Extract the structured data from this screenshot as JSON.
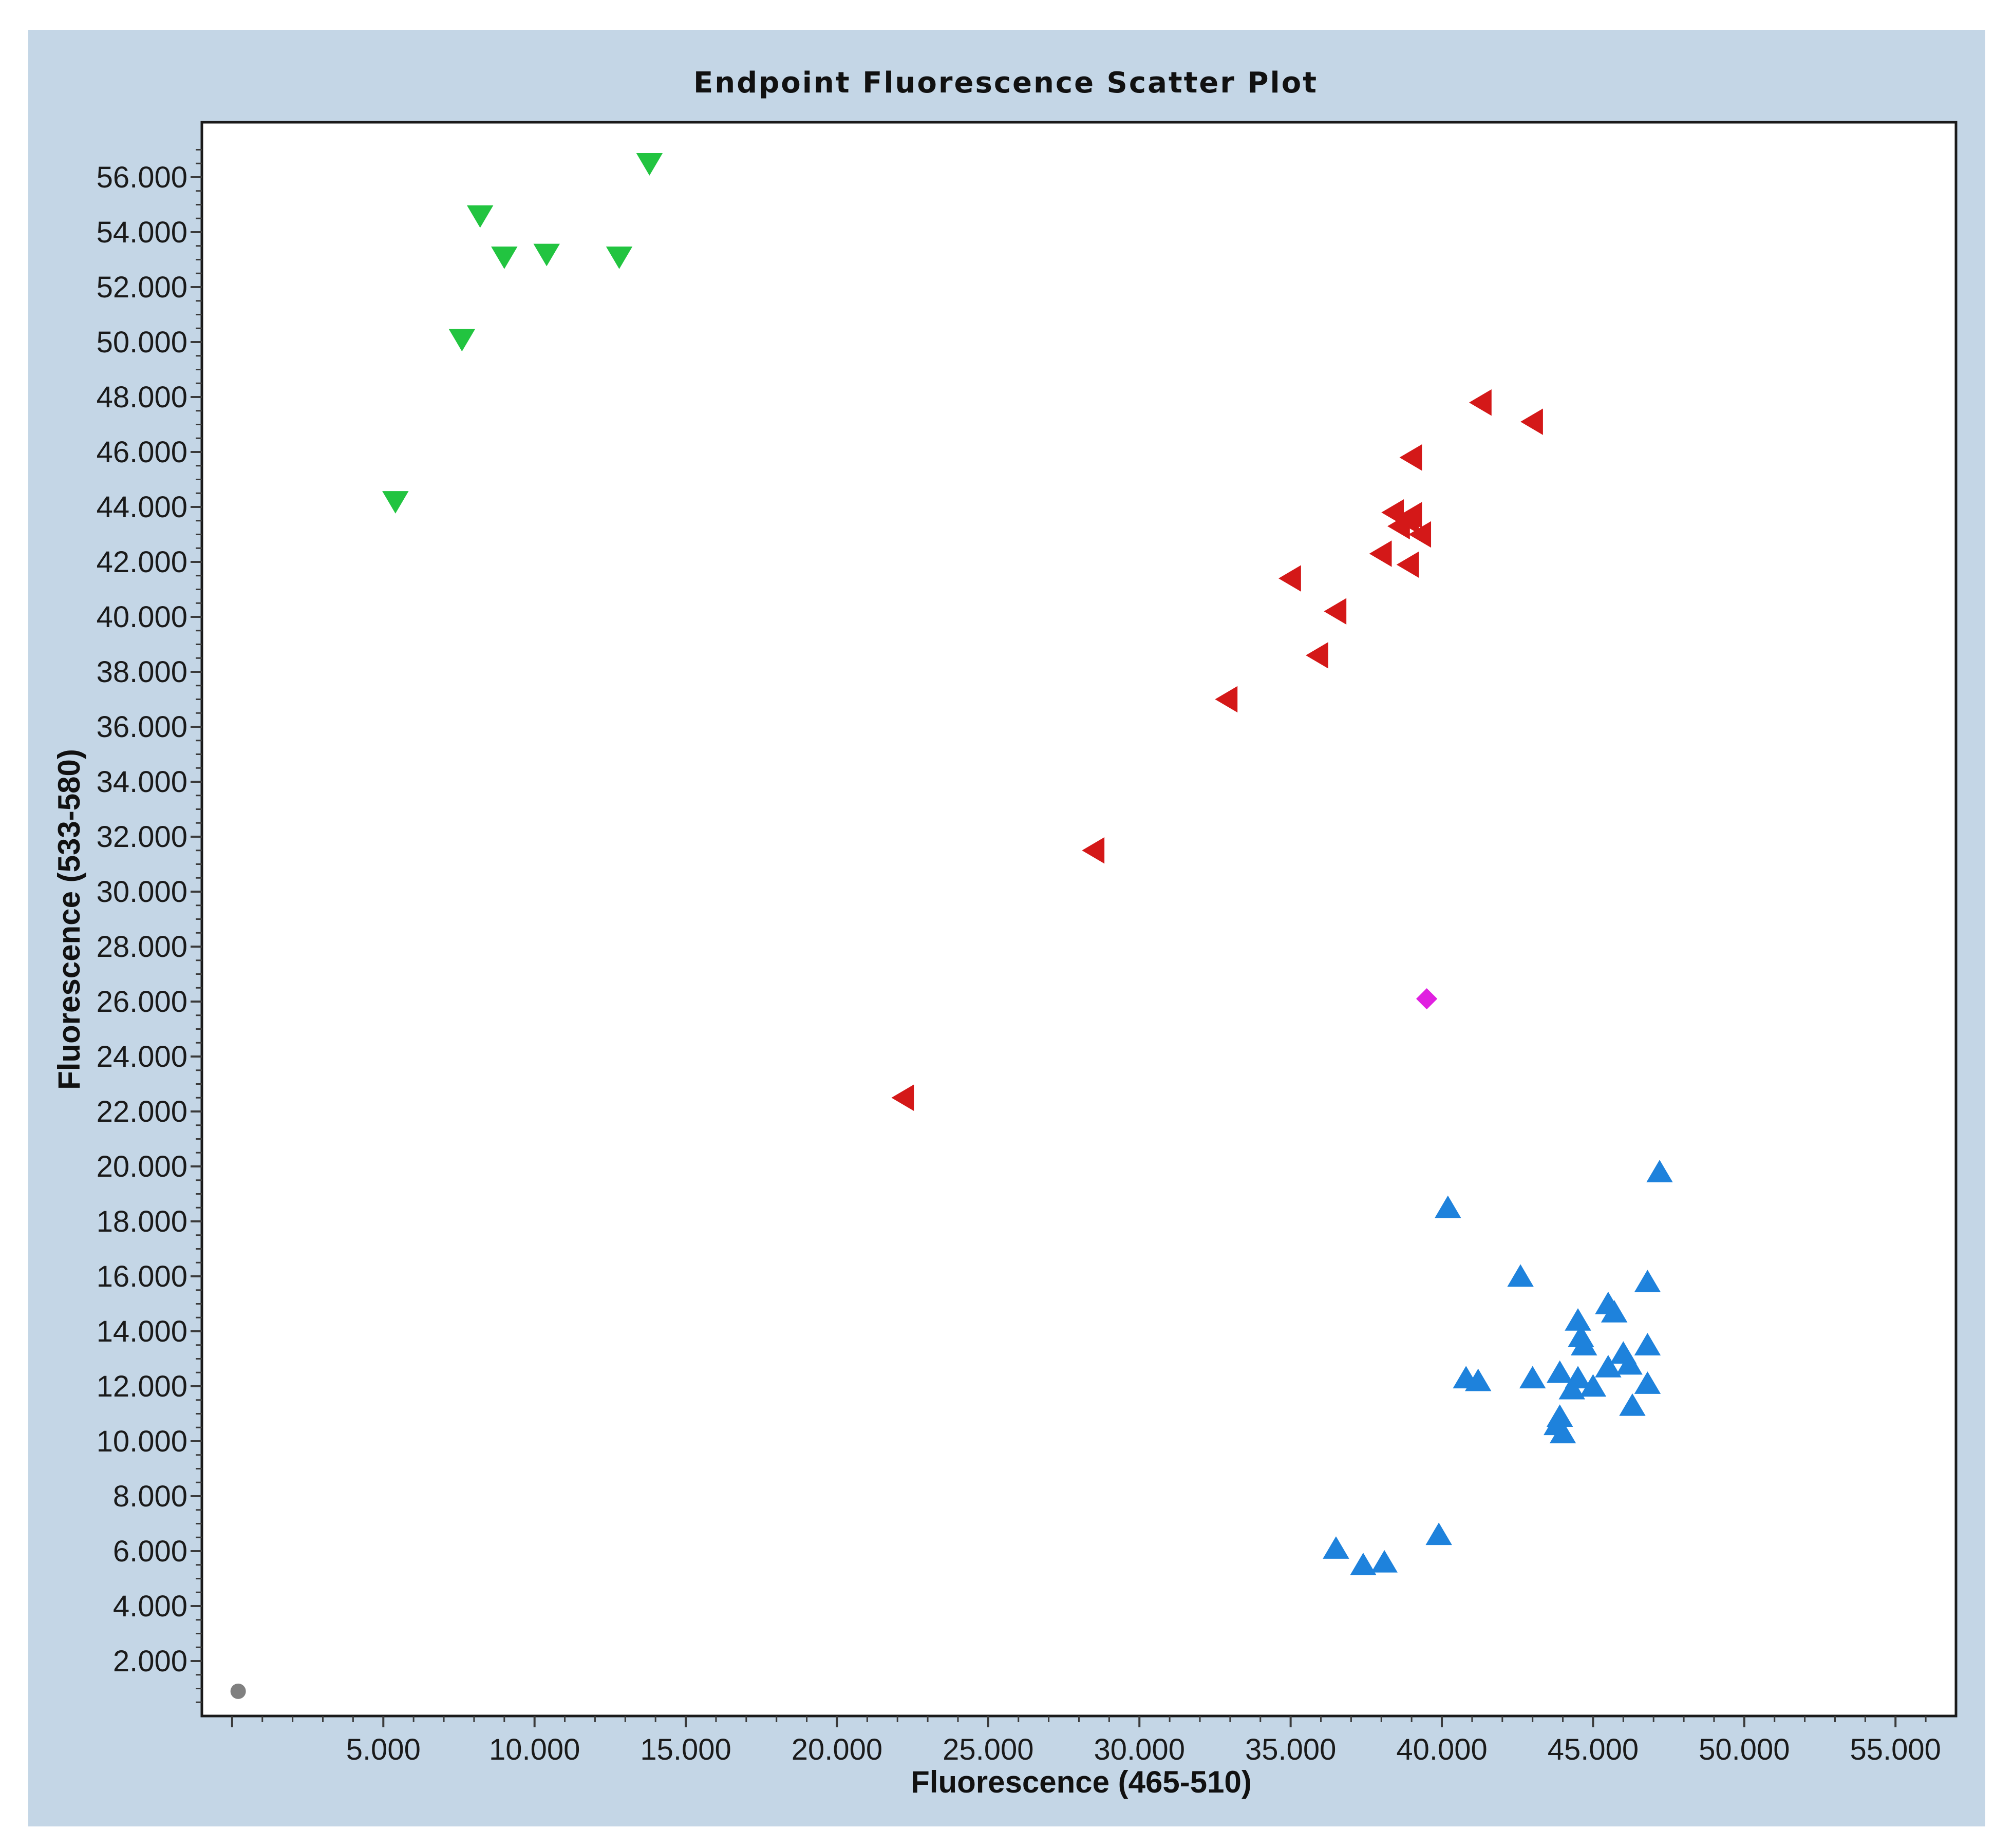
{
  "chart_data": {
    "type": "scatter",
    "title": "Endpoint Fluorescence Scatter Plot",
    "xlabel": "Fluorescence (465-510)",
    "ylabel": "Fluorescence (533-580)",
    "xlim": [
      -1000,
      57000
    ],
    "ylim": [
      0,
      58000
    ],
    "grid": false,
    "x_tick_labels": [
      "5.000",
      "10.000",
      "15.000",
      "20.000",
      "25.000",
      "30.000",
      "35.000",
      "40.000",
      "45.000",
      "50.000",
      "55.000"
    ],
    "x_ticks": [
      5000,
      10000,
      15000,
      20000,
      25000,
      30000,
      35000,
      40000,
      45000,
      50000,
      55000
    ],
    "y_tick_labels": [
      "2.000",
      "4.000",
      "6.000",
      "8.000",
      "10.000",
      "12.000",
      "14.000",
      "16.000",
      "18.000",
      "20.000",
      "22.000",
      "24.000",
      "26.000",
      "28.000",
      "30.000",
      "32.000",
      "34.000",
      "36.000",
      "38.000",
      "40.000",
      "42.000",
      "44.000",
      "46.000",
      "48.000",
      "50.000",
      "52.000",
      "54.000",
      "56.000"
    ],
    "y_ticks": [
      2000,
      4000,
      6000,
      8000,
      10000,
      12000,
      14000,
      16000,
      18000,
      20000,
      22000,
      24000,
      26000,
      28000,
      30000,
      32000,
      34000,
      36000,
      38000,
      40000,
      42000,
      44000,
      46000,
      48000,
      50000,
      52000,
      54000,
      56000
    ],
    "series": [
      {
        "marker": "triangle-down",
        "color": "#22c440",
        "points": [
          [
            13800,
            56500
          ],
          [
            8200,
            54600
          ],
          [
            9000,
            53100
          ],
          [
            10400,
            53200
          ],
          [
            12800,
            53100
          ],
          [
            7600,
            50100
          ],
          [
            5400,
            44200
          ]
        ]
      },
      {
        "marker": "triangle-left",
        "color": "#d41818",
        "points": [
          [
            41300,
            47800
          ],
          [
            43000,
            47100
          ],
          [
            39000,
            45800
          ],
          [
            38400,
            43800
          ],
          [
            39000,
            43700
          ],
          [
            38600,
            43300
          ],
          [
            38900,
            43500
          ],
          [
            39300,
            43000
          ],
          [
            38000,
            42300
          ],
          [
            38900,
            41900
          ],
          [
            35000,
            41400
          ],
          [
            36500,
            40200
          ],
          [
            35900,
            38600
          ],
          [
            32900,
            37000
          ],
          [
            28500,
            31500
          ],
          [
            22200,
            22500
          ]
        ]
      },
      {
        "marker": "diamond",
        "color": "#e020e0",
        "points": [
          [
            39500,
            26100
          ]
        ]
      },
      {
        "marker": "triangle-up",
        "color": "#1e82dc",
        "points": [
          [
            47200,
            19800
          ],
          [
            40200,
            18500
          ],
          [
            42600,
            16000
          ],
          [
            46800,
            15800
          ],
          [
            45500,
            15000
          ],
          [
            45700,
            14700
          ],
          [
            44500,
            14400
          ],
          [
            44600,
            13800
          ],
          [
            44700,
            13500
          ],
          [
            46800,
            13500
          ],
          [
            46000,
            13200
          ],
          [
            46200,
            12800
          ],
          [
            45500,
            12700
          ],
          [
            43900,
            12500
          ],
          [
            44500,
            12300
          ],
          [
            40800,
            12300
          ],
          [
            41200,
            12200
          ],
          [
            43000,
            12300
          ],
          [
            46800,
            12100
          ],
          [
            45000,
            12000
          ],
          [
            44300,
            11900
          ],
          [
            46300,
            11300
          ],
          [
            43900,
            10900
          ],
          [
            43800,
            10600
          ],
          [
            44000,
            10300
          ],
          [
            39900,
            6600
          ],
          [
            36500,
            6100
          ],
          [
            38100,
            5600
          ],
          [
            37400,
            5500
          ]
        ]
      },
      {
        "marker": "circle",
        "color": "#808080",
        "points": [
          [
            200,
            900
          ]
        ]
      }
    ]
  }
}
